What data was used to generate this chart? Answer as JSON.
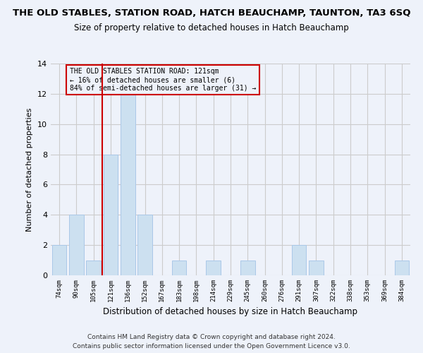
{
  "title": "THE OLD STABLES, STATION ROAD, HATCH BEAUCHAMP, TAUNTON, TA3 6SQ",
  "subtitle": "Size of property relative to detached houses in Hatch Beauchamp",
  "xlabel": "Distribution of detached houses by size in Hatch Beauchamp",
  "ylabel": "Number of detached properties",
  "footer1": "Contains HM Land Registry data © Crown copyright and database right 2024.",
  "footer2": "Contains public sector information licensed under the Open Government Licence v3.0.",
  "categories": [
    "74sqm",
    "90sqm",
    "105sqm",
    "121sqm",
    "136sqm",
    "152sqm",
    "167sqm",
    "183sqm",
    "198sqm",
    "214sqm",
    "229sqm",
    "245sqm",
    "260sqm",
    "276sqm",
    "291sqm",
    "307sqm",
    "322sqm",
    "338sqm",
    "353sqm",
    "369sqm",
    "384sqm"
  ],
  "values": [
    2,
    4,
    1,
    8,
    12,
    4,
    0,
    1,
    0,
    1,
    0,
    1,
    0,
    0,
    2,
    1,
    0,
    0,
    0,
    0,
    1
  ],
  "bar_color": "#cce0f0",
  "bar_edgecolor": "#aac8e8",
  "grid_color": "#cccccc",
  "vline_x_index": 3,
  "vline_color": "#cc0000",
  "annotation_box_text": "THE OLD STABLES STATION ROAD: 121sqm\n← 16% of detached houses are smaller (6)\n84% of semi-detached houses are larger (31) →",
  "annotation_box_color": "#cc0000",
  "ylim": [
    0,
    14
  ],
  "yticks": [
    0,
    2,
    4,
    6,
    8,
    10,
    12,
    14
  ],
  "bg_color": "#eef2fa",
  "title_fontsize": 9.5,
  "subtitle_fontsize": 8.5,
  "footer_fontsize": 6.5
}
